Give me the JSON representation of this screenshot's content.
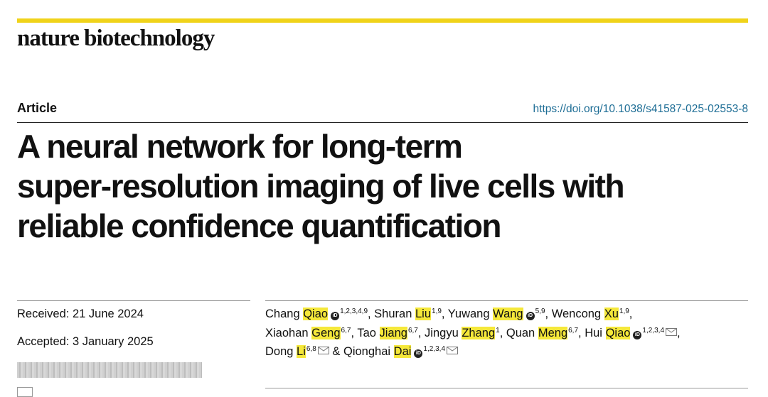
{
  "header": {
    "journal": "nature biotechnology",
    "accent_color": "#f0d31a"
  },
  "article": {
    "kind": "Article",
    "doi": "https://doi.org/10.1038/s41587-025-02553-8",
    "title_lines": [
      "A neural network for long-term",
      "super-resolution imaging of live cells with",
      "reliable confidence quantification"
    ]
  },
  "dates": {
    "received": "Received: 21 June 2024",
    "accepted": "Accepted: 3 January 2025"
  },
  "authors": [
    {
      "first": "Chang",
      "last": "Qiao",
      "sup": "1,2,3,4,9",
      "orcid": true,
      "mail": false
    },
    {
      "first": "Shuran",
      "last": "Liu",
      "sup": "1,9",
      "orcid": false,
      "mail": false
    },
    {
      "first": "Yuwang",
      "last": "Wang",
      "sup": "5,9",
      "orcid": true,
      "mail": false
    },
    {
      "first": "Wencong",
      "last": "Xu",
      "sup": "1,9",
      "orcid": false,
      "mail": false
    },
    {
      "first": "Xiaohan",
      "last": "Geng",
      "sup": "6,7",
      "orcid": false,
      "mail": false
    },
    {
      "first": "Tao",
      "last": "Jiang",
      "sup": "6,7",
      "orcid": false,
      "mail": false
    },
    {
      "first": "Jingyu",
      "last": "Zhang",
      "sup": "1",
      "orcid": false,
      "mail": false
    },
    {
      "first": "Quan",
      "last": "Meng",
      "sup": "6,7",
      "orcid": false,
      "mail": false
    },
    {
      "first": "Hui",
      "last": "Qiao",
      "sup": "1,2,3,4",
      "orcid": true,
      "mail": true
    },
    {
      "first": "Dong",
      "last": "Li",
      "sup": "6,8",
      "orcid": false,
      "mail": true
    },
    {
      "first": "Qionghai",
      "last": "Dai",
      "sup": "1,2,3,4",
      "orcid": true,
      "mail": true
    }
  ],
  "authors_conjunction": "&",
  "orcid_glyph": "iD"
}
